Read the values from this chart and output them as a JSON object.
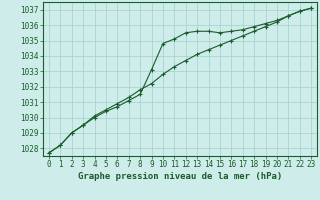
{
  "xlabel": "Graphe pression niveau de la mer (hPa)",
  "background_color": "#ceecea",
  "grid_color": "#a8d5d0",
  "line_color": "#1a5c2a",
  "spine_color": "#1a5c2a",
  "xlim": [
    -0.5,
    23.5
  ],
  "ylim": [
    1027.5,
    1037.5
  ],
  "yticks": [
    1028,
    1029,
    1030,
    1031,
    1032,
    1033,
    1034,
    1035,
    1036,
    1037
  ],
  "xticks": [
    0,
    1,
    2,
    3,
    4,
    5,
    6,
    7,
    8,
    9,
    10,
    11,
    12,
    13,
    14,
    15,
    16,
    17,
    18,
    19,
    20,
    21,
    22,
    23
  ],
  "line1_x": [
    0,
    1,
    2,
    3,
    4,
    5,
    6,
    7,
    8,
    9,
    10,
    11,
    12,
    13,
    14,
    15,
    16,
    17,
    18,
    19,
    20,
    21,
    22,
    23
  ],
  "line1_y": [
    1027.7,
    1028.2,
    1029.0,
    1029.5,
    1030.0,
    1030.4,
    1030.7,
    1031.1,
    1031.5,
    1033.1,
    1034.8,
    1035.1,
    1035.5,
    1035.6,
    1035.6,
    1035.5,
    1035.6,
    1035.7,
    1035.9,
    1036.1,
    1036.3,
    1036.6,
    1036.9,
    1037.1
  ],
  "line2_x": [
    0,
    1,
    2,
    3,
    4,
    5,
    6,
    7,
    8,
    9,
    10,
    11,
    12,
    13,
    14,
    15,
    16,
    17,
    18,
    19,
    20,
    21,
    22,
    23
  ],
  "line2_y": [
    1027.7,
    1028.2,
    1029.0,
    1029.5,
    1030.1,
    1030.5,
    1030.9,
    1031.3,
    1031.8,
    1032.2,
    1032.8,
    1033.3,
    1033.7,
    1034.1,
    1034.4,
    1034.7,
    1035.0,
    1035.3,
    1035.6,
    1035.9,
    1036.2,
    1036.6,
    1036.9,
    1037.1
  ],
  "tick_fontsize": 5.5,
  "xlabel_fontsize": 6.5
}
